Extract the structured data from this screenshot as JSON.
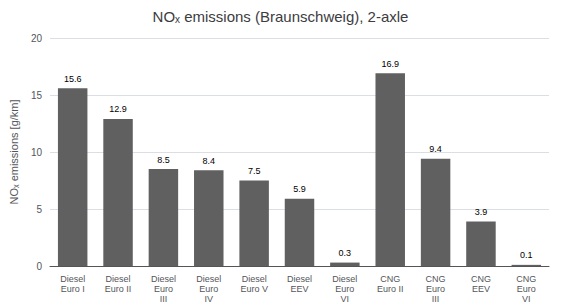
{
  "chart_data": {
    "type": "bar",
    "title": "NOₓ emissions (Braunschweig), 2-axle",
    "ylabel": "NOₓ emissions [g/km]",
    "categories": [
      "Diesel\nEuro I",
      "Diesel\nEuro II",
      "Diesel\nEuro\nIII",
      "Diesel\nEuro\nIV",
      "Diesel\nEuro V",
      "Diesel\nEEV",
      "Diesel\nEuro\nVI",
      "CNG\nEuro II",
      "CNG\nEuro\nIII",
      "CNG\nEEV",
      "CNG\nEuro\nVI"
    ],
    "values": [
      15.6,
      12.9,
      8.5,
      8.4,
      7.5,
      5.9,
      0.3,
      16.9,
      9.4,
      3.9,
      0.1
    ],
    "color": "#606060",
    "ylim": [
      0,
      20
    ],
    "yticks": [
      0,
      5,
      10,
      15,
      20
    ],
    "grid": true,
    "data_labels": true
  }
}
